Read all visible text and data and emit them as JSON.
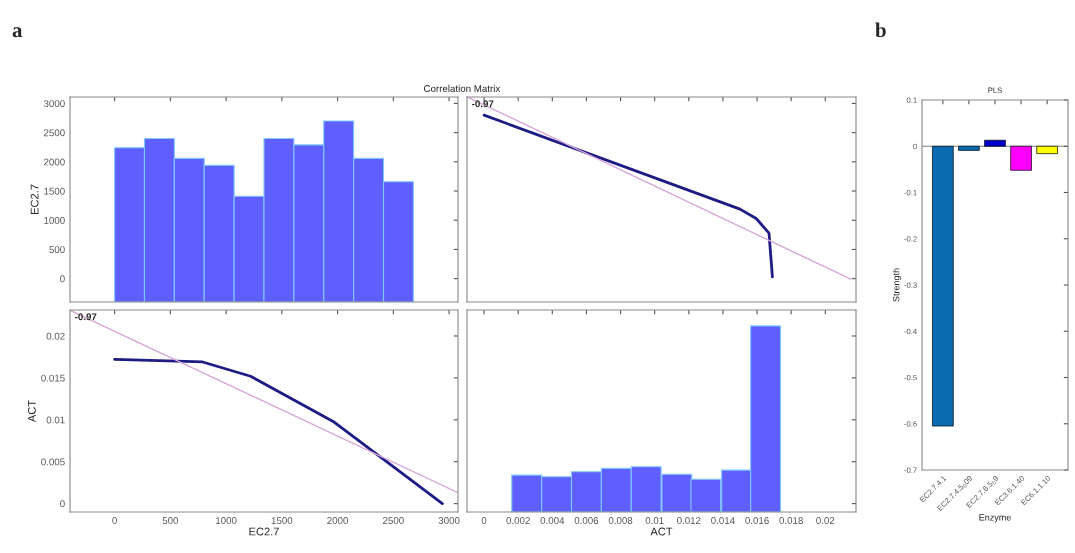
{
  "chart_data": [
    {
      "type": "bar",
      "title": "Correlation Matrix",
      "ylabel": "EC2.7",
      "annotations": [
        "a"
      ],
      "x": [
        134,
        402,
        670,
        938,
        1206,
        1474,
        1742,
        2010,
        2278,
        2546
      ],
      "base": [
        -400,
        -400,
        -400,
        -400,
        -400,
        -400,
        -400,
        -400,
        -400,
        -400
      ],
      "values": [
        2640,
        2800,
        2460,
        2340,
        1810,
        2800,
        2690,
        3100,
        2460,
        2060
      ],
      "color": "#5f5fff",
      "xlim": [
        -400,
        3080
      ],
      "xticks": [
        0,
        500,
        1000,
        1500,
        2000,
        2500,
        3000
      ],
      "ylim": [
        -400,
        3110
      ],
      "yticks": [
        0,
        500,
        1000,
        1500,
        2000,
        2500,
        3000
      ],
      "tick_labels": "y"
    },
    {
      "type": "line",
      "annotations": [
        "-0.97"
      ],
      "series": [
        {
          "x": [
            0.0,
            0.015,
            0.01595,
            0.0167,
            0.0169
          ],
          "values": [
            2800,
            1190,
            1030,
            780,
            30
          ],
          "color": "#1c1c84"
        },
        {
          "x": [
            -0.0009,
            0.0215
          ],
          "values": [
            3100,
            -10
          ],
          "color": "#d9a3d9"
        }
      ],
      "xlim": [
        -0.001,
        0.0218
      ],
      "xticks": [
        0,
        0.002,
        0.004,
        0.006,
        0.008,
        0.01,
        0.012,
        0.014,
        0.016,
        0.018,
        0.02
      ],
      "ylim": [
        -400,
        3110
      ],
      "yticks": [
        0,
        500,
        1000,
        1500,
        2000,
        2500,
        3000
      ],
      "tick_labels": false
    },
    {
      "type": "line",
      "xlabel": "EC2.7",
      "ylabel": "ACT",
      "annotations": [
        "-0.97"
      ],
      "series": [
        {
          "x": [
            0,
            790,
            1220,
            1960,
            2940
          ],
          "values": [
            0.0172,
            0.0169,
            0.0152,
            0.0098,
            0.0
          ],
          "color": "#1c1c84"
        },
        {
          "x": [
            -390,
            3080
          ],
          "values": [
            0.023,
            0.0013
          ],
          "color": "#d9a3d9"
        }
      ],
      "xlim": [
        -400,
        3080
      ],
      "xticks": [
        0,
        500,
        1000,
        1500,
        2000,
        2500,
        3000
      ],
      "ylim": [
        -0.001,
        0.0231
      ],
      "yticks": [
        0,
        0.005,
        0.01,
        0.015,
        0.02
      ]
    },
    {
      "type": "bar",
      "xlabel": "ACT",
      "x": [
        0.0025,
        0.00425,
        0.006,
        0.00775,
        0.0095,
        0.0113,
        0.013,
        0.0148,
        0.0165
      ],
      "base": [
        -0.001,
        -0.001,
        -0.001,
        -0.001,
        -0.001,
        -0.001,
        -0.001,
        -0.001,
        -0.001
      ],
      "values": [
        0.0044,
        0.0042,
        0.0048,
        0.0052,
        0.0054,
        0.0045,
        0.0039,
        0.005,
        0.0222
      ],
      "color": "#5f5fff",
      "xlim": [
        -0.001,
        0.0218
      ],
      "xticks": [
        0,
        0.002,
        0.004,
        0.006,
        0.008,
        0.01,
        0.012,
        0.014,
        0.016,
        0.018,
        0.02
      ],
      "ylim": [
        -0.001,
        0.0231
      ],
      "yticks": [
        0,
        0.005,
        0.01,
        0.015,
        0.02
      ],
      "tick_labels": "x"
    },
    {
      "type": "bar",
      "title": "PLS",
      "xlabel": "Enzyme",
      "ylabel": "Strength",
      "annotations": [
        "b"
      ],
      "categories": [
        "EC2.7.4.1",
        "EC2.7.4.5$_{0}$09",
        "EC2.7.6.5$_{0}$9",
        "EC3.6.1.40",
        "EC6.1.1.10"
      ],
      "values": [
        -0.605,
        -0.009,
        0.013,
        -0.052,
        -0.016
      ],
      "colors": [
        "#0a6cb0",
        "#0a6cb0",
        "#0000cc",
        "#ff00ff",
        "#ffff00"
      ],
      "ylim": [
        -0.7,
        0.1
      ],
      "yticks": [
        -0.7,
        -0.6,
        -0.5,
        -0.4,
        -0.3,
        -0.2,
        -0.1,
        0,
        0.1
      ],
      "ref_lines": [
        {
          "axis": "y",
          "value": 0,
          "color": "#808080"
        }
      ]
    }
  ]
}
